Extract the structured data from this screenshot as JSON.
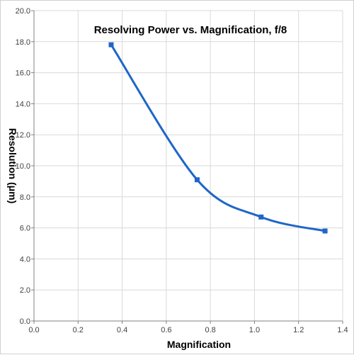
{
  "chart_data": {
    "type": "line",
    "title": "Resolving Power vs. Magnification, f/8",
    "xlabel": "Magnification",
    "ylabel": "Resolution (μm)",
    "xlim": [
      0.0,
      1.4
    ],
    "ylim": [
      0.0,
      20.0
    ],
    "x_ticks": [
      "0.0",
      "0.2",
      "0.4",
      "0.6",
      "0.8",
      "1.0",
      "1.2",
      "1.4"
    ],
    "y_ticks": [
      "0.0",
      "2.0",
      "4.0",
      "6.0",
      "8.0",
      "10.0",
      "12.0",
      "14.0",
      "16.0",
      "18.0",
      "20.0"
    ],
    "grid": true,
    "smooth": true,
    "series": [
      {
        "color": "#1f66c7",
        "marker": "square",
        "points": [
          {
            "x": 0.35,
            "y": 17.8
          },
          {
            "x": 0.74,
            "y": 9.1
          },
          {
            "x": 1.03,
            "y": 6.7
          },
          {
            "x": 1.32,
            "y": 5.8
          }
        ]
      }
    ],
    "colors": {
      "grid": "#d9d9d9",
      "axis": "#808080",
      "series": "#1f66c7"
    }
  }
}
